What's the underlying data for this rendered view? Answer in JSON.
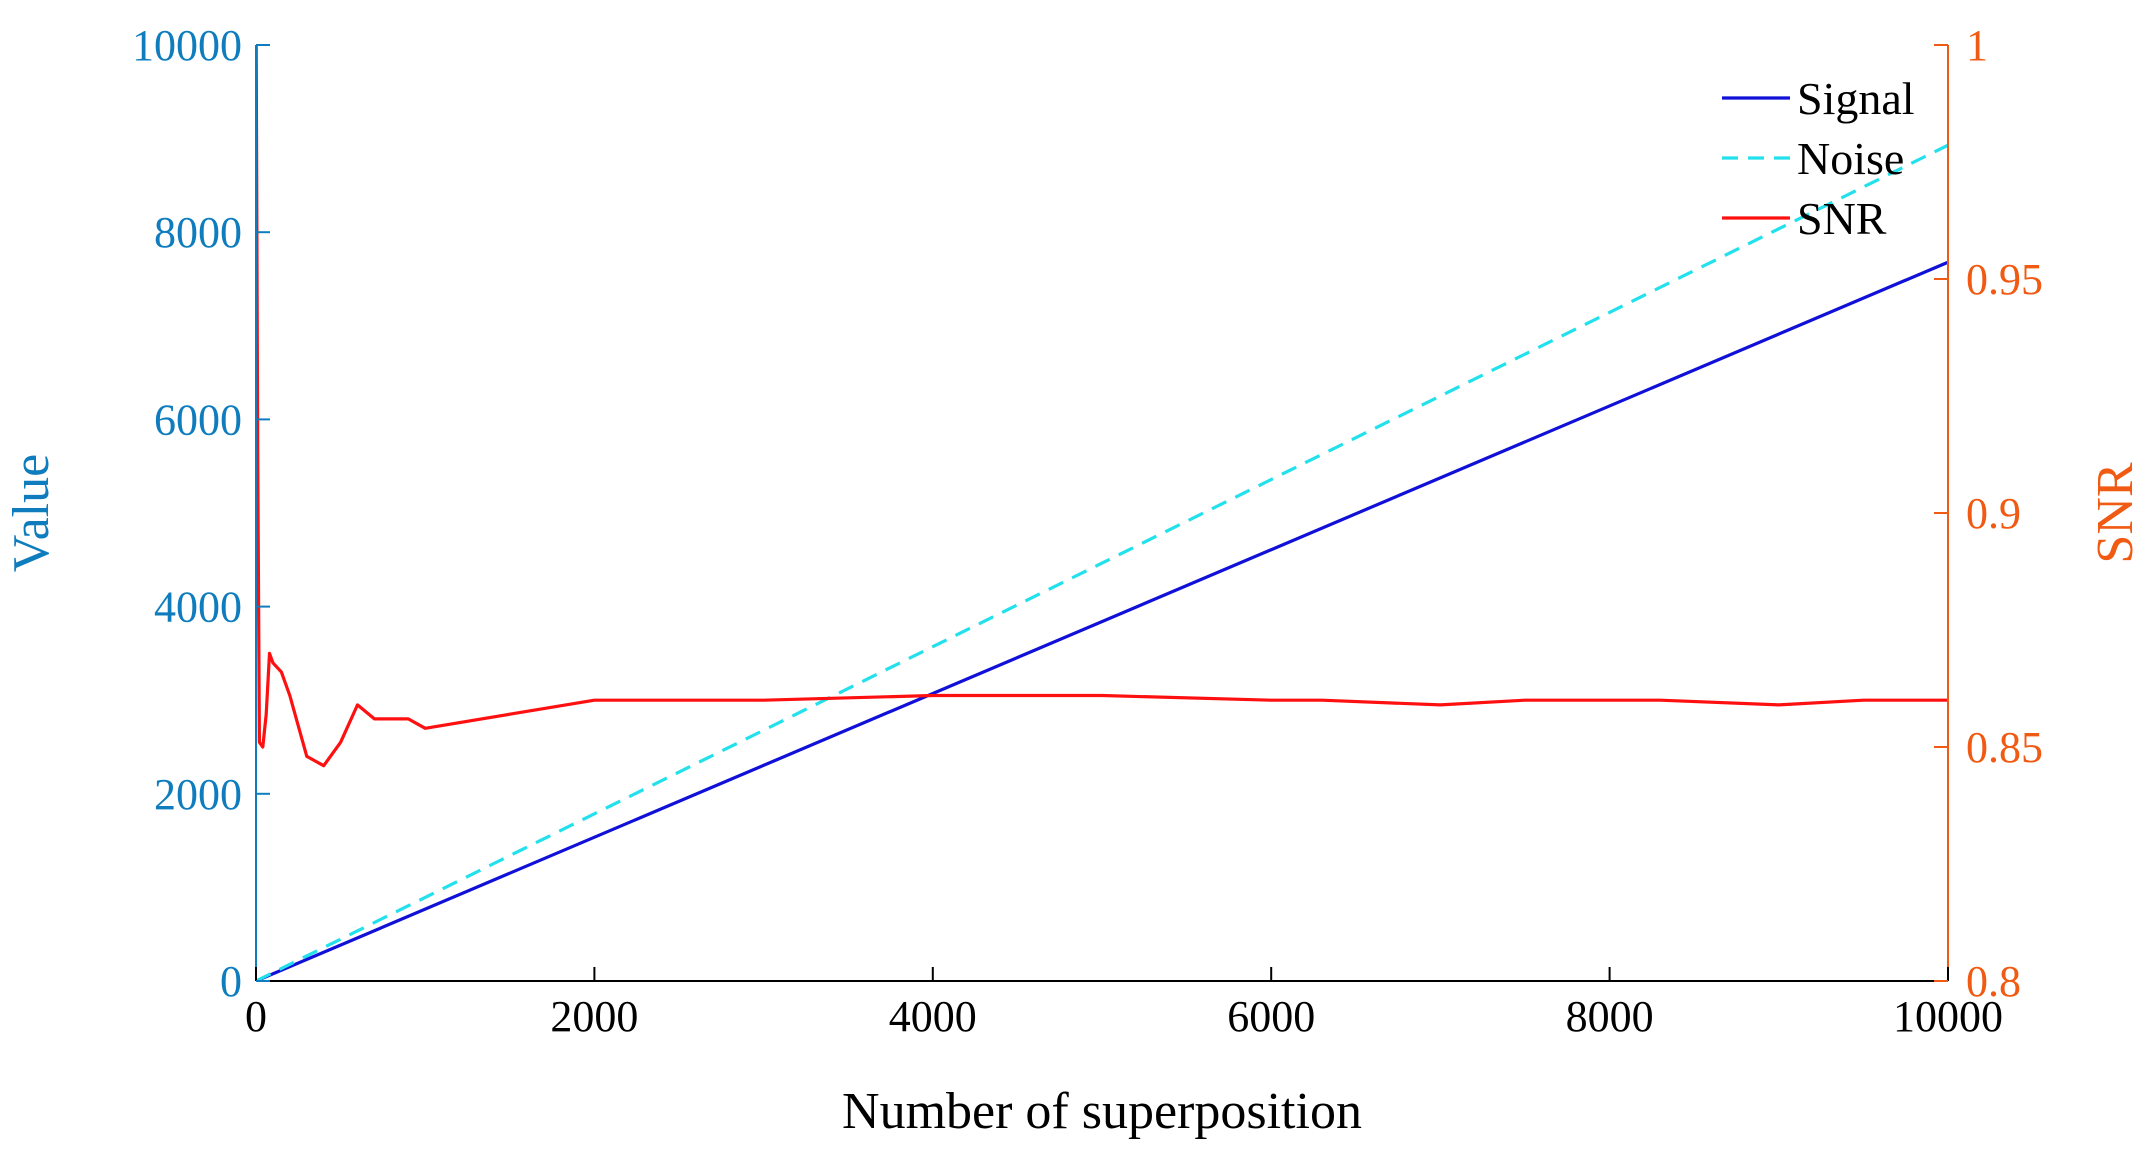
{
  "chart_data": {
    "type": "line",
    "title": "",
    "xlabel": "Number of superposition",
    "ylabel_left": "Value",
    "ylabel_right": "SNR",
    "xlim": [
      0,
      10000
    ],
    "ylim_left": [
      0,
      10000
    ],
    "ylim_right": [
      0.8,
      1
    ],
    "x_ticks": [
      "0",
      "2000",
      "4000",
      "6000",
      "8000",
      "10000"
    ],
    "y_left_ticks": [
      "0",
      "2000",
      "4000",
      "6000",
      "8000",
      "10000"
    ],
    "y_right_ticks": [
      "0.8",
      "0.85",
      "0.9",
      "0.95",
      "1"
    ],
    "grid": false,
    "legend_position": "top-right",
    "colors": {
      "left_axis": "#0f7dbd",
      "right_axis": "#f05a12",
      "signal": "#1010d8",
      "noise": "#22e0ec",
      "snr": "#ff1010"
    },
    "series": [
      {
        "name": "Signal",
        "axis": "left",
        "style": "solid",
        "x": [
          1,
          10000
        ],
        "y": [
          1,
          7680
        ]
      },
      {
        "name": "Noise",
        "axis": "left",
        "style": "dashed",
        "x": [
          1,
          10000
        ],
        "y": [
          1,
          8930
        ]
      },
      {
        "name": "SNR",
        "axis": "right",
        "style": "solid",
        "x": [
          1,
          10,
          20,
          40,
          60,
          80,
          100,
          150,
          200,
          300,
          400,
          500,
          600,
          700,
          800,
          900,
          1000,
          1500,
          2000,
          2500,
          3000,
          4000,
          5000,
          6000,
          6300,
          7000,
          7500,
          8000,
          8300,
          9000,
          9500,
          10000
        ],
        "y": [
          1.0,
          0.913,
          0.851,
          0.85,
          0.857,
          0.87,
          0.868,
          0.866,
          0.861,
          0.848,
          0.846,
          0.851,
          0.859,
          0.856,
          0.856,
          0.856,
          0.854,
          0.857,
          0.86,
          0.86,
          0.86,
          0.861,
          0.861,
          0.86,
          0.86,
          0.859,
          0.86,
          0.86,
          0.86,
          0.859,
          0.86,
          0.86
        ]
      }
    ]
  }
}
